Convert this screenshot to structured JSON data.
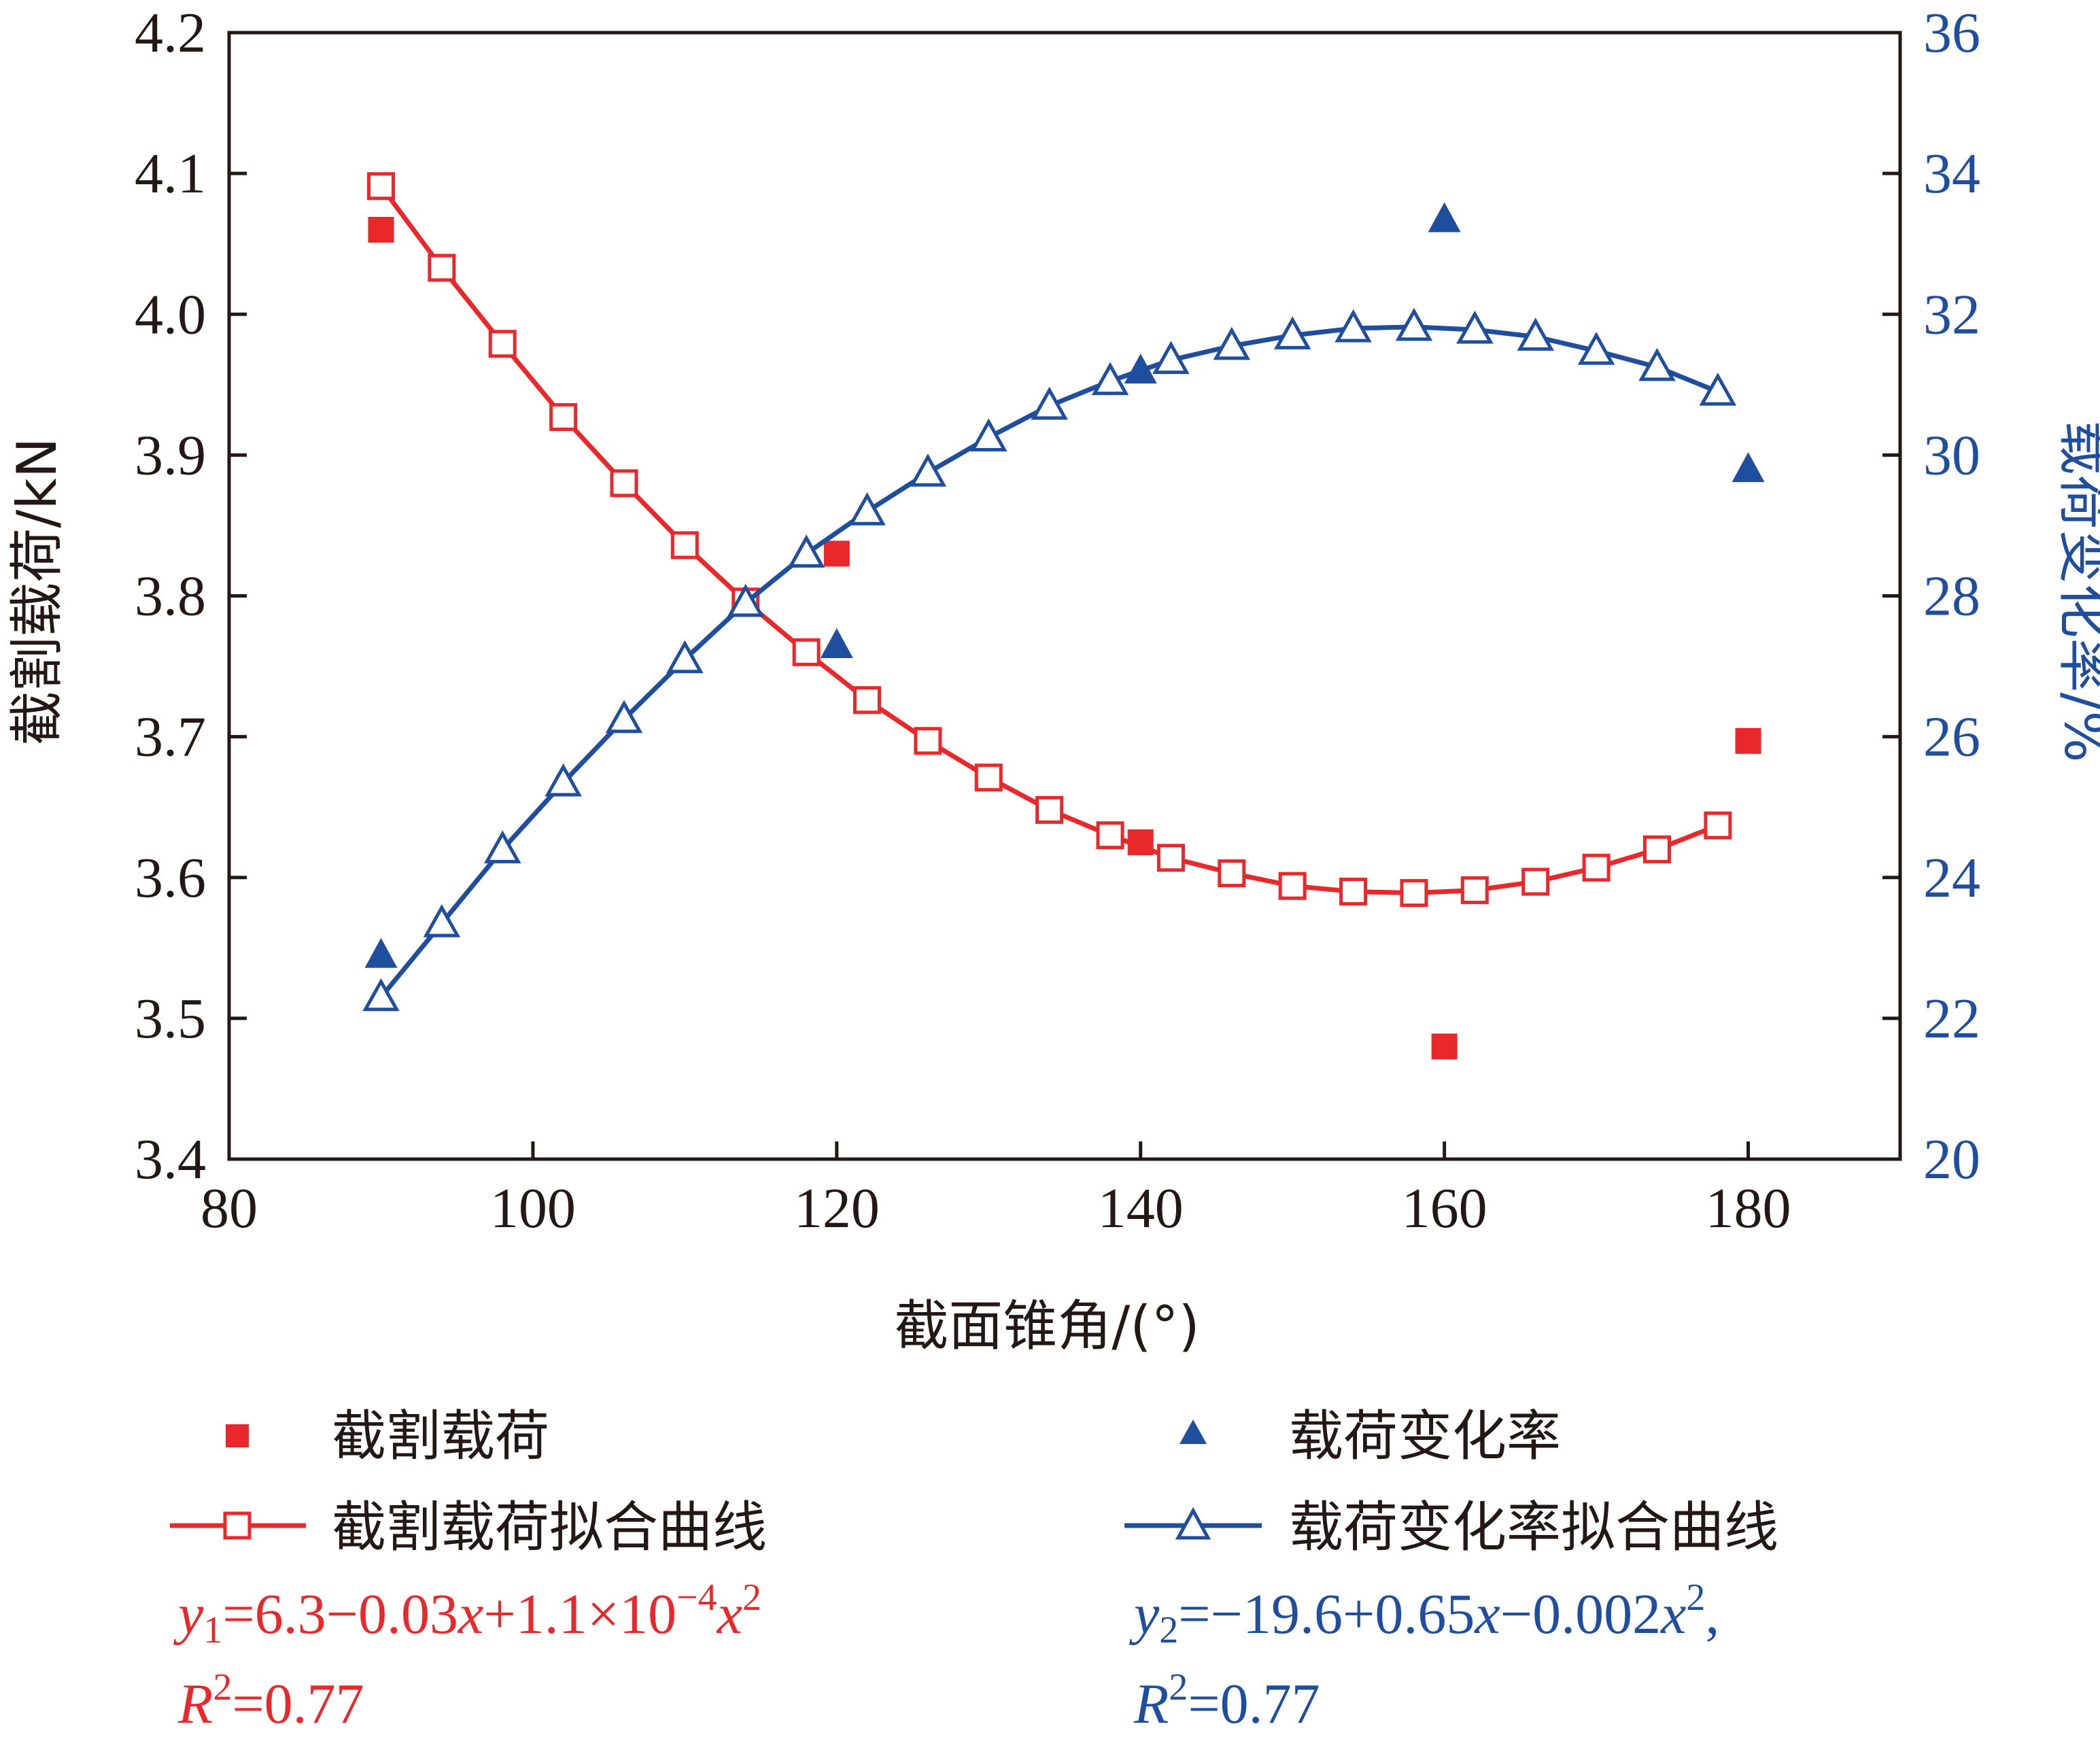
{
  "chart_data": {
    "type": "scatter",
    "xlabel": "截面锥角/(°)",
    "ylabel": "截割载荷/kN",
    "y2label": "载荷变化率/%",
    "xlim": [
      80,
      190
    ],
    "ylim": [
      3.4,
      4.2
    ],
    "y2lim": [
      20,
      36
    ],
    "xticks": [
      80,
      100,
      120,
      140,
      160,
      180
    ],
    "yticks": [
      3.4,
      3.5,
      3.6,
      3.7,
      3.8,
      3.9,
      4.0,
      4.1,
      4.2
    ],
    "y2ticks": [
      20,
      22,
      24,
      26,
      28,
      30,
      32,
      34,
      36
    ],
    "colors": {
      "red": "#e8282b",
      "blue": "#1f4e9e",
      "axis": "#231815"
    },
    "series": [
      {
        "name": "截割载荷",
        "kind": "scatter",
        "marker": "filled-square",
        "axis": "left",
        "color": "#e8282b",
        "x": [
          90,
          120,
          140,
          160,
          180
        ],
        "y": [
          4.06,
          3.83,
          3.625,
          3.48,
          3.697
        ]
      },
      {
        "name": "载荷变化率",
        "kind": "scatter",
        "marker": "filled-triangle",
        "axis": "right",
        "color": "#1f4e9e",
        "x": [
          90,
          120,
          140,
          160,
          180
        ],
        "y": [
          22.9,
          27.3,
          31.2,
          33.35,
          29.8
        ]
      },
      {
        "name": "截割载荷拟合曲线",
        "kind": "line",
        "marker": "open-square",
        "axis": "left",
        "color": "#e8282b",
        "x": [
          90,
          94,
          98,
          102,
          106,
          110,
          114,
          118,
          122,
          126,
          130,
          134,
          138,
          142,
          146,
          150,
          154,
          158,
          162,
          166,
          170,
          174,
          178
        ],
        "y": [
          4.091,
          4.033,
          3.979,
          3.927,
          3.88,
          3.836,
          3.796,
          3.76,
          3.726,
          3.697,
          3.671,
          3.648,
          3.63,
          3.614,
          3.603,
          3.594,
          3.59,
          3.589,
          3.591,
          3.597,
          3.607,
          3.62,
          3.637
        ]
      },
      {
        "name": "载荷变化率拟合曲线",
        "kind": "line",
        "marker": "open-triangle",
        "axis": "right",
        "color": "#1f4e9e",
        "x": [
          90,
          94,
          98,
          102,
          106,
          110,
          114,
          118,
          122,
          126,
          130,
          134,
          138,
          142,
          146,
          150,
          154,
          158,
          162,
          166,
          170,
          174,
          178
        ],
        "y": [
          22.3,
          23.35,
          24.4,
          25.35,
          26.25,
          27.1,
          27.9,
          28.6,
          29.2,
          29.75,
          30.25,
          30.7,
          31.05,
          31.35,
          31.55,
          31.7,
          31.8,
          31.82,
          31.78,
          31.68,
          31.48,
          31.25,
          30.9
        ]
      }
    ],
    "legend": {
      "position": "bottom",
      "items": [
        "截割载荷",
        "载荷变化率",
        "截割载荷拟合曲线",
        "载荷变化率拟合曲线"
      ]
    },
    "annotations": {
      "eq1_line1": "y1=6.3−0.03x+1.1×10−4x2",
      "eq1_line2": "R2=0.77",
      "eq2_line1": "y2=−19.6+0.65x−0.002x2,",
      "eq2_line2": "R2=0.77"
    }
  }
}
